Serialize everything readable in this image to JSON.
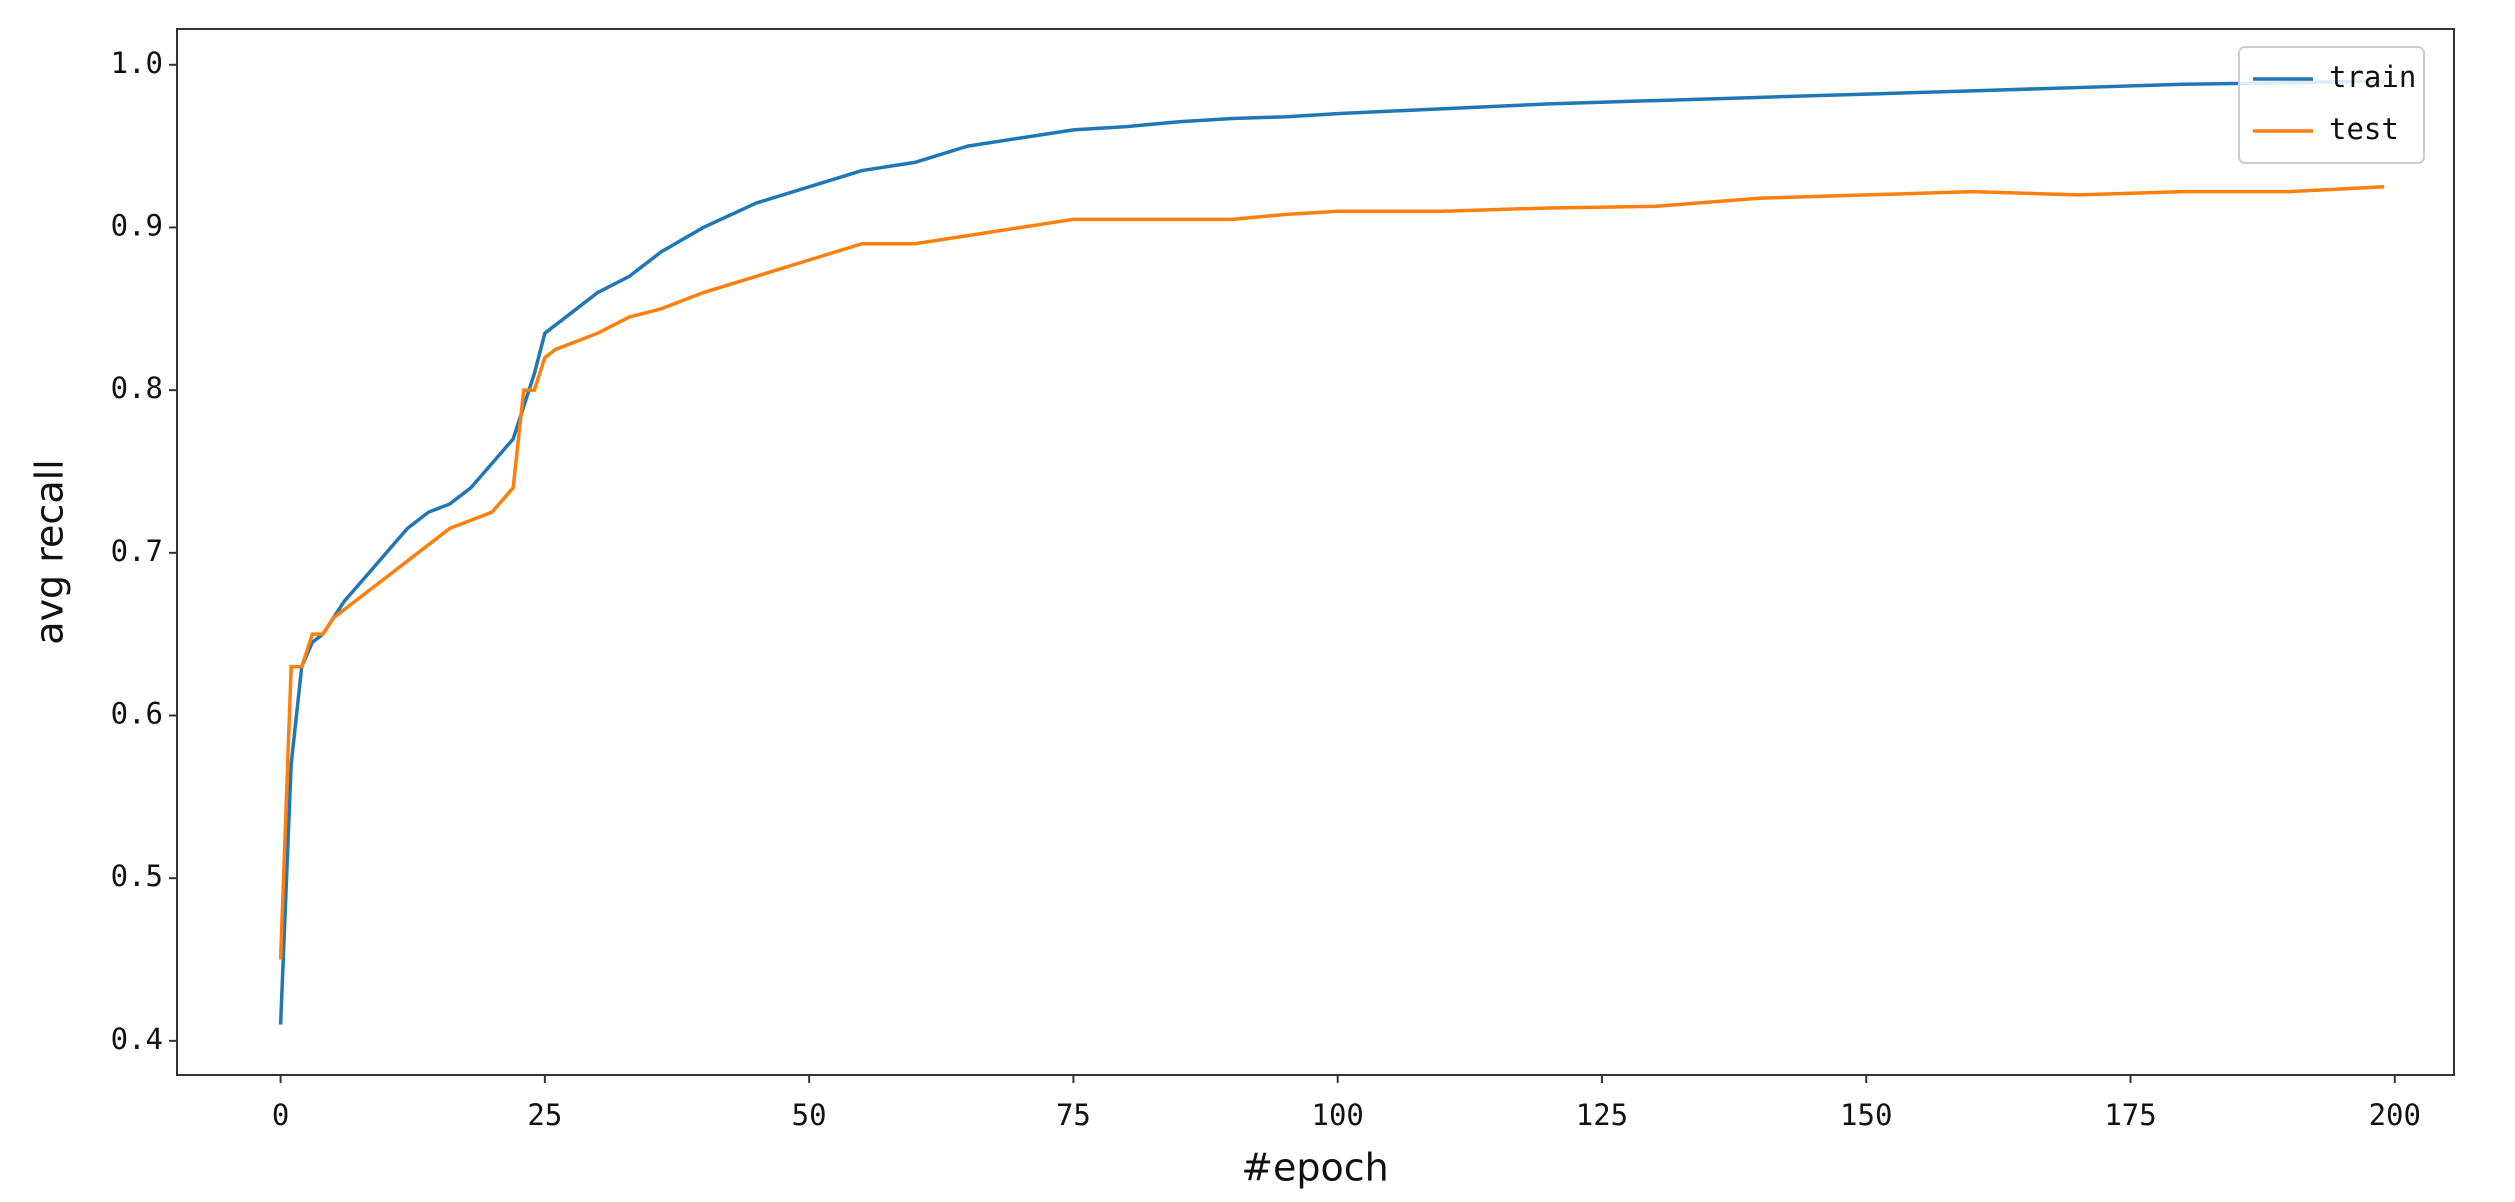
{
  "chart_data": {
    "type": "line",
    "x_label": "#epoch",
    "y_label": "avg recall",
    "x": [
      0,
      1,
      2,
      3,
      4,
      5,
      6,
      8,
      10,
      12,
      14,
      16,
      18,
      20,
      22,
      23,
      24,
      25,
      26,
      28,
      30,
      33,
      36,
      40,
      45,
      50,
      55,
      60,
      65,
      70,
      75,
      80,
      85,
      90,
      95,
      100,
      110,
      120,
      130,
      140,
      150,
      160,
      170,
      180,
      190,
      199
    ],
    "series": [
      {
        "name": "train",
        "color": "#1f77b4",
        "values": [
          0.41,
          0.57,
          0.63,
          0.645,
          0.65,
          0.66,
          0.67,
          0.685,
          0.7,
          0.715,
          0.725,
          0.73,
          0.74,
          0.755,
          0.77,
          0.79,
          0.81,
          0.835,
          0.84,
          0.85,
          0.86,
          0.87,
          0.885,
          0.9,
          0.915,
          0.925,
          0.935,
          0.94,
          0.95,
          0.955,
          0.96,
          0.962,
          0.965,
          0.967,
          0.968,
          0.97,
          0.973,
          0.976,
          0.978,
          0.98,
          0.982,
          0.984,
          0.986,
          0.988,
          0.989,
          0.99
        ]
      },
      {
        "name": "test",
        "color": "#ff7f0e",
        "values": [
          0.45,
          0.63,
          0.63,
          0.65,
          0.65,
          0.66,
          0.665,
          0.675,
          0.685,
          0.695,
          0.705,
          0.715,
          0.72,
          0.725,
          0.74,
          0.8,
          0.8,
          0.82,
          0.825,
          0.83,
          0.835,
          0.845,
          0.85,
          0.86,
          0.87,
          0.88,
          0.89,
          0.89,
          0.895,
          0.9,
          0.905,
          0.905,
          0.905,
          0.905,
          0.908,
          0.91,
          0.91,
          0.912,
          0.913,
          0.918,
          0.92,
          0.922,
          0.92,
          0.922,
          0.922,
          0.925
        ]
      }
    ],
    "xlim": [
      -9.8,
      205.6
    ],
    "ylim": [
      0.379,
      1.022
    ],
    "xticks": [
      0,
      25,
      50,
      75,
      100,
      125,
      150,
      175,
      200
    ],
    "yticks": [
      0.4,
      0.5,
      0.6,
      0.7,
      0.8,
      0.9,
      {
        "value": 1.0,
        "label": "1.0"
      }
    ],
    "legend": "upper right"
  }
}
